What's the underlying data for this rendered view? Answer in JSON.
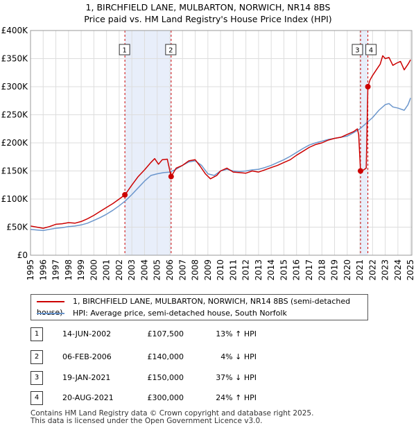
{
  "title_line1": "1, BIRCHFIELD LANE, MULBARTON, NORWICH, NR14 8BS",
  "title_line2": "Price paid vs. HM Land Registry's House Price Index (HPI)",
  "chart_data": {
    "type": "line",
    "xlim": [
      1995,
      2025.1
    ],
    "ylim": [
      0,
      400000
    ],
    "yticks": [
      {
        "v": 0,
        "label": "£0"
      },
      {
        "v": 50000,
        "label": "£50K"
      },
      {
        "v": 100000,
        "label": "£100K"
      },
      {
        "v": 150000,
        "label": "£150K"
      },
      {
        "v": 200000,
        "label": "£200K"
      },
      {
        "v": 250000,
        "label": "£250K"
      },
      {
        "v": 300000,
        "label": "£300K"
      },
      {
        "v": 350000,
        "label": "£350K"
      },
      {
        "v": 400000,
        "label": "£400K"
      }
    ],
    "xticks": [
      "1995",
      "1996",
      "1997",
      "1998",
      "1999",
      "2000",
      "2001",
      "2002",
      "2003",
      "2004",
      "2005",
      "2006",
      "2007",
      "2008",
      "2009",
      "2010",
      "2011",
      "2012",
      "2013",
      "2014",
      "2015",
      "2016",
      "2017",
      "2018",
      "2019",
      "2020",
      "2021",
      "2022",
      "2023",
      "2024",
      "2025"
    ],
    "series": [
      {
        "name": "1, BIRCHFIELD LANE, MULBARTON, NORWICH, NR14 8BS (semi-detached house)",
        "color": "#cc0000",
        "points": [
          [
            1995,
            52000
          ],
          [
            1995.5,
            50000
          ],
          [
            1996,
            48000
          ],
          [
            1996.5,
            51000
          ],
          [
            1997,
            55000
          ],
          [
            1997.5,
            56000
          ],
          [
            1998,
            58000
          ],
          [
            1998.5,
            57000
          ],
          [
            1999,
            60000
          ],
          [
            1999.5,
            65000
          ],
          [
            2000,
            71000
          ],
          [
            2000.5,
            78000
          ],
          [
            2001,
            85000
          ],
          [
            2001.5,
            92000
          ],
          [
            2002,
            100000
          ],
          [
            2002.46,
            107500
          ],
          [
            2003,
            125000
          ],
          [
            2003.5,
            140000
          ],
          [
            2004,
            152000
          ],
          [
            2004.5,
            165000
          ],
          [
            2004.8,
            172000
          ],
          [
            2005.1,
            162000
          ],
          [
            2005.4,
            170000
          ],
          [
            2005.8,
            171000
          ],
          [
            2006.1,
            140000
          ],
          [
            2006.5,
            155000
          ],
          [
            2007,
            160000
          ],
          [
            2007.5,
            168000
          ],
          [
            2008,
            170000
          ],
          [
            2008.4,
            158000
          ],
          [
            2008.8,
            145000
          ],
          [
            2009.2,
            136000
          ],
          [
            2009.7,
            142000
          ],
          [
            2010,
            150000
          ],
          [
            2010.5,
            155000
          ],
          [
            2011,
            148000
          ],
          [
            2011.5,
            147000
          ],
          [
            2012,
            146000
          ],
          [
            2012.5,
            150000
          ],
          [
            2013,
            148000
          ],
          [
            2013.5,
            152000
          ],
          [
            2014,
            156000
          ],
          [
            2014.5,
            160000
          ],
          [
            2015,
            165000
          ],
          [
            2015.5,
            170000
          ],
          [
            2016,
            178000
          ],
          [
            2016.5,
            185000
          ],
          [
            2017,
            192000
          ],
          [
            2017.5,
            197000
          ],
          [
            2018,
            200000
          ],
          [
            2018.5,
            205000
          ],
          [
            2019,
            208000
          ],
          [
            2019.5,
            210000
          ],
          [
            2020,
            215000
          ],
          [
            2020.5,
            220000
          ],
          [
            2020.8,
            225000
          ],
          [
            2020.9,
            215000
          ],
          [
            2021.05,
            150000
          ],
          [
            2021.3,
            152000
          ],
          [
            2021.5,
            155000
          ],
          [
            2021.63,
            300000
          ],
          [
            2021.8,
            312000
          ],
          [
            2022,
            320000
          ],
          [
            2022.3,
            330000
          ],
          [
            2022.6,
            340000
          ],
          [
            2022.8,
            355000
          ],
          [
            2023,
            350000
          ],
          [
            2023.3,
            352000
          ],
          [
            2023.6,
            338000
          ],
          [
            2023.9,
            342000
          ],
          [
            2024.2,
            345000
          ],
          [
            2024.5,
            330000
          ],
          [
            2024.8,
            340000
          ],
          [
            2025,
            348000
          ]
        ]
      },
      {
        "name": "HPI: Average price, semi-detached house, South Norfolk",
        "color": "#6b96cc",
        "points": [
          [
            1995,
            46000
          ],
          [
            1995.5,
            45000
          ],
          [
            1996,
            44000
          ],
          [
            1996.5,
            46000
          ],
          [
            1997,
            48000
          ],
          [
            1997.5,
            49000
          ],
          [
            1998,
            51000
          ],
          [
            1998.5,
            52000
          ],
          [
            1999,
            54000
          ],
          [
            1999.5,
            57000
          ],
          [
            2000,
            62000
          ],
          [
            2000.5,
            67000
          ],
          [
            2001,
            73000
          ],
          [
            2001.5,
            80000
          ],
          [
            2002,
            88000
          ],
          [
            2002.5,
            97000
          ],
          [
            2003,
            108000
          ],
          [
            2003.5,
            120000
          ],
          [
            2004,
            132000
          ],
          [
            2004.5,
            142000
          ],
          [
            2005,
            145000
          ],
          [
            2005.5,
            147000
          ],
          [
            2006,
            148000
          ],
          [
            2006.5,
            153000
          ],
          [
            2007,
            160000
          ],
          [
            2007.5,
            166000
          ],
          [
            2008,
            168000
          ],
          [
            2008.5,
            160000
          ],
          [
            2009,
            145000
          ],
          [
            2009.5,
            142000
          ],
          [
            2010,
            150000
          ],
          [
            2010.5,
            153000
          ],
          [
            2011,
            150000
          ],
          [
            2011.5,
            149000
          ],
          [
            2012,
            150000
          ],
          [
            2012.5,
            152000
          ],
          [
            2013,
            153000
          ],
          [
            2013.5,
            156000
          ],
          [
            2014,
            160000
          ],
          [
            2014.5,
            165000
          ],
          [
            2015,
            170000
          ],
          [
            2015.5,
            176000
          ],
          [
            2016,
            183000
          ],
          [
            2016.5,
            190000
          ],
          [
            2017,
            196000
          ],
          [
            2017.5,
            200000
          ],
          [
            2018,
            203000
          ],
          [
            2018.5,
            206000
          ],
          [
            2019,
            208000
          ],
          [
            2019.5,
            210000
          ],
          [
            2020,
            212000
          ],
          [
            2020.5,
            218000
          ],
          [
            2021,
            225000
          ],
          [
            2021.5,
            235000
          ],
          [
            2022,
            245000
          ],
          [
            2022.5,
            258000
          ],
          [
            2023,
            268000
          ],
          [
            2023.3,
            270000
          ],
          [
            2023.6,
            264000
          ],
          [
            2024,
            262000
          ],
          [
            2024.5,
            258000
          ],
          [
            2024.8,
            268000
          ],
          [
            2025,
            280000
          ]
        ]
      }
    ],
    "sales": [
      {
        "num": "1",
        "date": 2002.45,
        "price": 107500
      },
      {
        "num": "2",
        "date": 2006.1,
        "price": 140000
      },
      {
        "num": "3",
        "date": 2021.05,
        "price": 150000
      },
      {
        "num": "4",
        "date": 2021.63,
        "price": 300000
      }
    ],
    "shaded_ranges": [
      [
        2002.45,
        2006.1
      ],
      [
        2021.05,
        2021.63
      ]
    ]
  },
  "legend": {
    "property": "1, BIRCHFIELD LANE, MULBARTON, NORWICH, NR14 8BS (semi-detached house)",
    "hpi": "HPI: Average price, semi-detached house, South Norfolk"
  },
  "transactions": [
    {
      "num": "1",
      "date": "14-JUN-2002",
      "price": "£107,500",
      "hpi": "13% ↑ HPI"
    },
    {
      "num": "2",
      "date": "06-FEB-2006",
      "price": "£140,000",
      "hpi": "4% ↓ HPI"
    },
    {
      "num": "3",
      "date": "19-JAN-2021",
      "price": "£150,000",
      "hpi": "37% ↓ HPI"
    },
    {
      "num": "4",
      "date": "20-AUG-2021",
      "price": "£300,000",
      "hpi": "24% ↑ HPI"
    }
  ],
  "footer_line1": "Contains HM Land Registry data © Crown copyright and database right 2025.",
  "footer_line2": "This data is licensed under the Open Government Licence v3.0."
}
